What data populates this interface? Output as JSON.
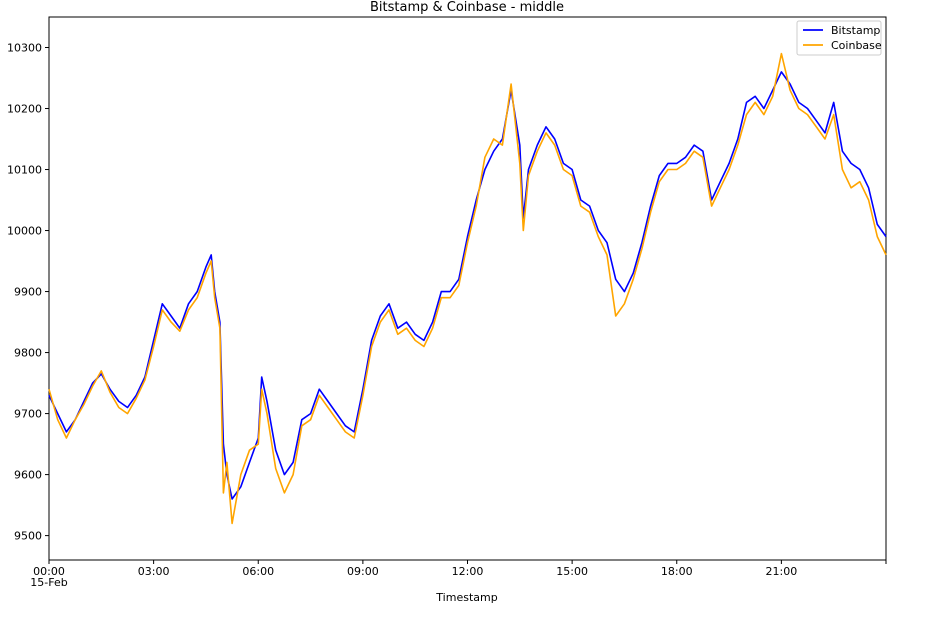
{
  "chart_data": {
    "type": "line",
    "title": "Bitstamp & Coinbase - middle",
    "xlabel": "Timestamp",
    "ylabel": "",
    "x_ticks": [
      "00:00",
      "03:00",
      "06:00",
      "09:00",
      "12:00",
      "15:00",
      "18:00",
      "21:00"
    ],
    "x_tick_sublabel": "15-Feb",
    "xlim_hours": [
      0,
      24
    ],
    "ylim": [
      9460,
      10350
    ],
    "y_ticks": [
      9500,
      9600,
      9700,
      9800,
      9900,
      10000,
      10100,
      10200,
      10300
    ],
    "legend_position": "upper right",
    "grid": false,
    "series": [
      {
        "name": "Bitstamp",
        "color": "#0000ff",
        "x_hours": [
          0,
          0.25,
          0.5,
          0.75,
          1.0,
          1.25,
          1.5,
          1.75,
          2.0,
          2.25,
          2.5,
          2.75,
          3.0,
          3.25,
          3.5,
          3.75,
          4.0,
          4.25,
          4.5,
          4.65,
          4.75,
          4.9,
          5.0,
          5.1,
          5.25,
          5.5,
          5.75,
          6.0,
          6.1,
          6.25,
          6.5,
          6.75,
          7.0,
          7.25,
          7.5,
          7.75,
          8.0,
          8.25,
          8.5,
          8.75,
          9.0,
          9.25,
          9.5,
          9.75,
          10.0,
          10.25,
          10.5,
          10.75,
          11.0,
          11.25,
          11.5,
          11.75,
          12.0,
          12.25,
          12.5,
          12.75,
          13.0,
          13.25,
          13.5,
          13.6,
          13.75,
          14.0,
          14.25,
          14.5,
          14.75,
          15.0,
          15.25,
          15.5,
          15.75,
          16.0,
          16.25,
          16.5,
          16.75,
          17.0,
          17.25,
          17.5,
          17.75,
          18.0,
          18.25,
          18.5,
          18.75,
          19.0,
          19.25,
          19.5,
          19.75,
          20.0,
          20.25,
          20.5,
          20.75,
          21.0,
          21.25,
          21.5,
          21.75,
          22.0,
          22.25,
          22.5,
          22.75,
          23.0,
          23.25,
          23.5,
          23.75,
          24.0
        ],
        "values": [
          9730,
          9700,
          9670,
          9690,
          9720,
          9750,
          9765,
          9740,
          9720,
          9710,
          9730,
          9760,
          9820,
          9880,
          9860,
          9840,
          9880,
          9900,
          9940,
          9960,
          9900,
          9850,
          9650,
          9600,
          9560,
          9580,
          9620,
          9660,
          9760,
          9720,
          9640,
          9600,
          9620,
          9690,
          9700,
          9740,
          9720,
          9700,
          9680,
          9670,
          9740,
          9820,
          9860,
          9880,
          9840,
          9850,
          9830,
          9820,
          9850,
          9900,
          9900,
          9920,
          9990,
          10050,
          10100,
          10130,
          10150,
          10230,
          10140,
          10020,
          10100,
          10140,
          10170,
          10150,
          10110,
          10100,
          10050,
          10040,
          10000,
          9980,
          9920,
          9900,
          9930,
          9980,
          10040,
          10090,
          10110,
          10110,
          10120,
          10140,
          10130,
          10050,
          10080,
          10110,
          10150,
          10210,
          10220,
          10200,
          10230,
          10260,
          10240,
          10210,
          10200,
          10180,
          10160,
          10210,
          10130,
          10110,
          10100,
          10070,
          10010,
          9990
        ]
      },
      {
        "name": "Coinbase",
        "color": "#ffa500",
        "x_hours": [
          0,
          0.25,
          0.5,
          0.75,
          1.0,
          1.25,
          1.5,
          1.75,
          2.0,
          2.25,
          2.5,
          2.75,
          3.0,
          3.25,
          3.5,
          3.75,
          4.0,
          4.25,
          4.5,
          4.65,
          4.75,
          4.9,
          5.0,
          5.1,
          5.25,
          5.5,
          5.75,
          6.0,
          6.1,
          6.25,
          6.5,
          6.75,
          7.0,
          7.25,
          7.5,
          7.75,
          8.0,
          8.25,
          8.5,
          8.75,
          9.0,
          9.25,
          9.5,
          9.75,
          10.0,
          10.25,
          10.5,
          10.75,
          11.0,
          11.25,
          11.5,
          11.75,
          12.0,
          12.25,
          12.5,
          12.75,
          13.0,
          13.25,
          13.5,
          13.6,
          13.75,
          14.0,
          14.25,
          14.5,
          14.75,
          15.0,
          15.25,
          15.5,
          15.75,
          16.0,
          16.25,
          16.5,
          16.75,
          17.0,
          17.25,
          17.5,
          17.75,
          18.0,
          18.25,
          18.5,
          18.75,
          19.0,
          19.25,
          19.5,
          19.75,
          20.0,
          20.25,
          20.5,
          20.75,
          21.0,
          21.25,
          21.5,
          21.75,
          22.0,
          22.25,
          22.5,
          22.75,
          23.0,
          23.25,
          23.5,
          23.75,
          24.0
        ],
        "values": [
          9740,
          9690,
          9660,
          9690,
          9715,
          9745,
          9770,
          9735,
          9710,
          9700,
          9725,
          9755,
          9810,
          9870,
          9850,
          9835,
          9870,
          9890,
          9930,
          9950,
          9890,
          9840,
          9570,
          9620,
          9520,
          9600,
          9640,
          9650,
          9740,
          9700,
          9610,
          9570,
          9600,
          9680,
          9690,
          9730,
          9710,
          9690,
          9670,
          9660,
          9730,
          9810,
          9850,
          9870,
          9830,
          9840,
          9820,
          9810,
          9840,
          9890,
          9890,
          9910,
          9980,
          10040,
          10120,
          10150,
          10140,
          10240,
          10110,
          10000,
          10090,
          10130,
          10160,
          10140,
          10100,
          10090,
          10040,
          10030,
          9990,
          9960,
          9860,
          9880,
          9920,
          9970,
          10030,
          10080,
          10100,
          10100,
          10110,
          10130,
          10120,
          10040,
          10070,
          10100,
          10140,
          10190,
          10210,
          10190,
          10220,
          10290,
          10230,
          10200,
          10190,
          10170,
          10150,
          10190,
          10100,
          10070,
          10080,
          10050,
          9990,
          9960
        ]
      }
    ]
  }
}
